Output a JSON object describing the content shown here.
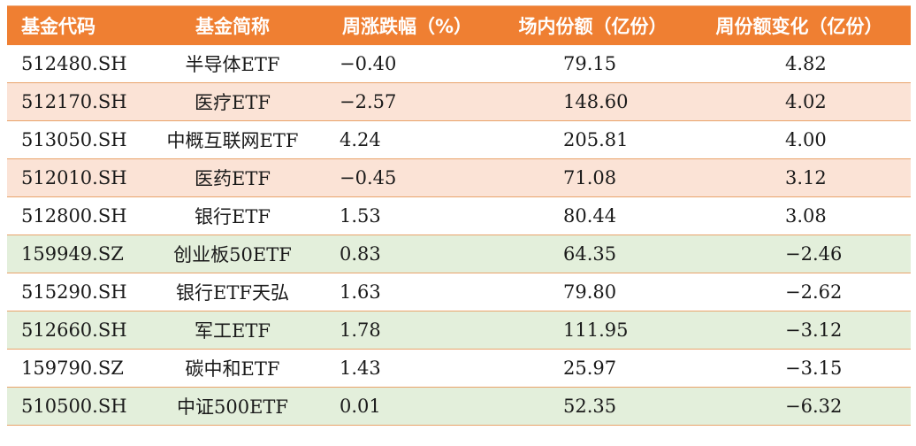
{
  "table": {
    "headers": [
      "基金代码",
      "基金简称",
      "周涨跌幅（%）",
      "场内份额（亿份）",
      "周份额变化（亿份）"
    ],
    "rows": [
      [
        "512480.SH",
        "半导体ETF",
        "−0.40",
        "79.15",
        "4.82"
      ],
      [
        "512170.SH",
        "医疗ETF",
        "−2.57",
        "148.60",
        "4.02"
      ],
      [
        "513050.SH",
        "中概互联网ETF",
        "4.24",
        "205.81",
        "4.00"
      ],
      [
        "512010.SH",
        "医药ETF",
        "−0.45",
        "71.08",
        "3.12"
      ],
      [
        "512800.SH",
        "银行ETF",
        "1.53",
        "80.44",
        "3.08"
      ],
      [
        "159949.SZ",
        "创业板50ETF",
        "0.83",
        "64.35",
        "−2.46"
      ],
      [
        "515290.SH",
        "银行ETF天弘",
        "1.63",
        "79.80",
        "−2.62"
      ],
      [
        "512660.SH",
        "军工ETF",
        "1.78",
        "111.95",
        "−3.12"
      ],
      [
        "159790.SZ",
        "碳中和ETF",
        "1.43",
        "25.97",
        "−3.15"
      ],
      [
        "510500.SH",
        "中证500ETF",
        "0.01",
        "52.35",
        "−6.32"
      ]
    ],
    "row_styles": [
      "white",
      "pink",
      "white",
      "pink",
      "white",
      "green",
      "white",
      "green",
      "white",
      "green"
    ],
    "colors": {
      "header_bg": "#ef7f32",
      "pink_row": "#fbe3d6",
      "green_row": "#e3efdb",
      "border": "#e9a36b"
    }
  }
}
